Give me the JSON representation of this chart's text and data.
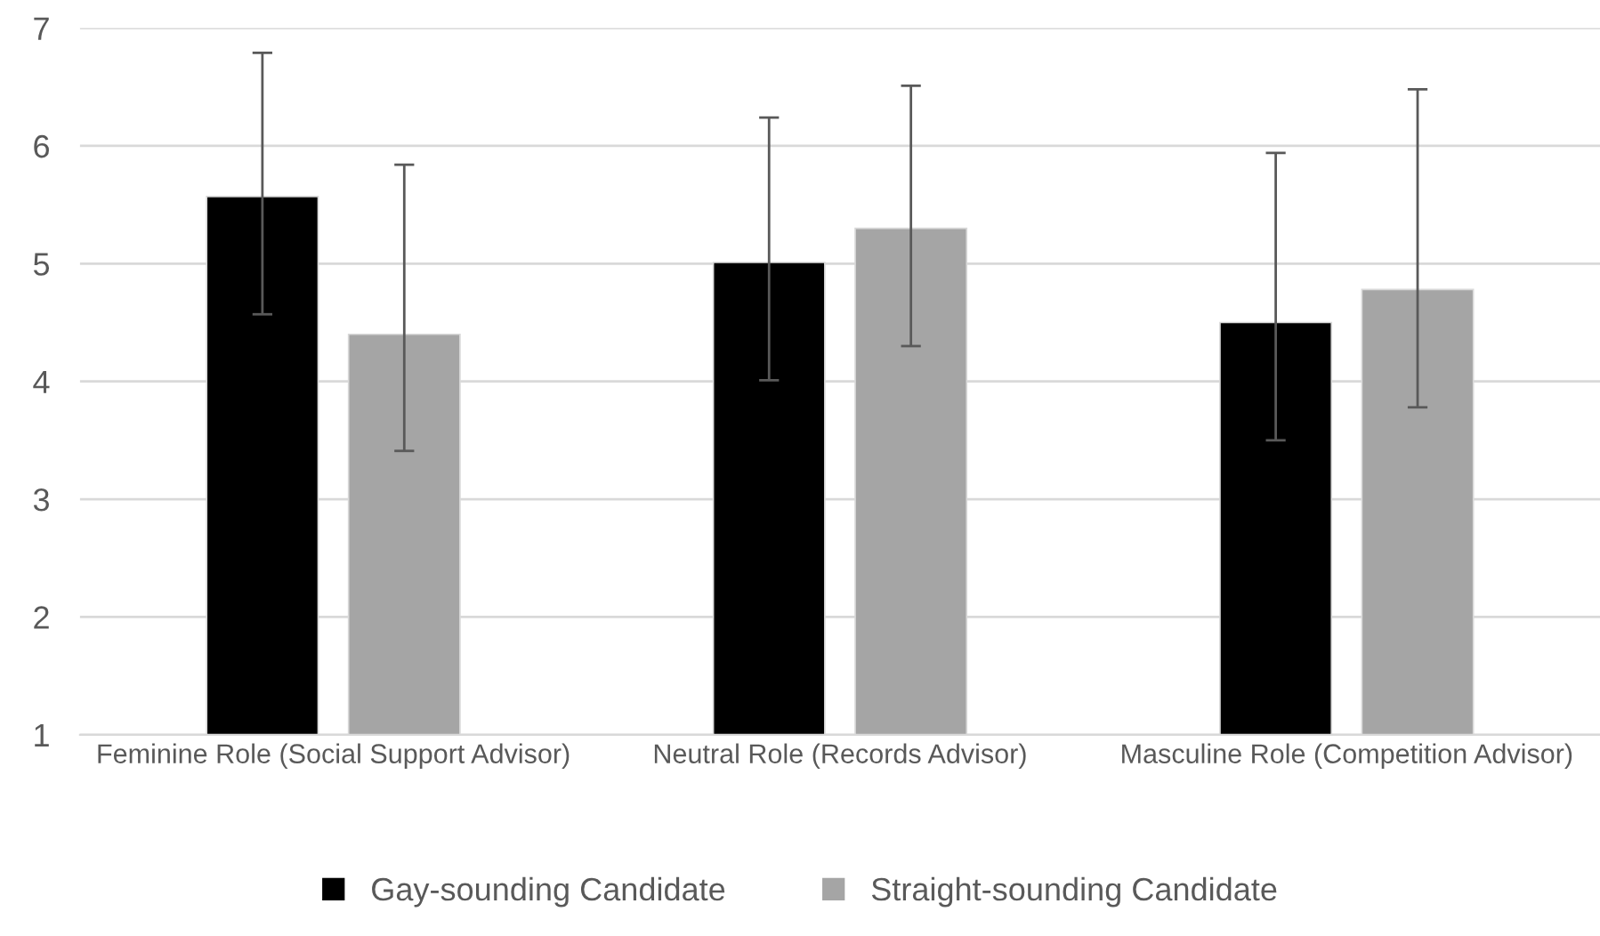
{
  "chart_data": {
    "type": "bar",
    "categories": [
      "Feminine Role (Social Support Advisor)",
      "Neutral Role (Records Advisor)",
      "Masculine Role (Competition Advisor)"
    ],
    "series": [
      {
        "name": "Gay-sounding Candidate",
        "color": "#000000",
        "values": [
          5.57,
          5.01,
          4.5
        ],
        "errors": [
          [
            4.57,
            6.79
          ],
          [
            4.01,
            6.24
          ],
          [
            3.5,
            5.94
          ]
        ]
      },
      {
        "name": "Straight-sounding Candidate",
        "color": "#a5a5a5",
        "values": [
          4.4,
          5.3,
          4.78
        ],
        "errors": [
          [
            3.41,
            5.84
          ],
          [
            4.3,
            6.51
          ],
          [
            3.78,
            6.48
          ]
        ]
      }
    ],
    "ylim": [
      1,
      7
    ],
    "yticks": [
      1,
      2,
      3,
      4,
      5,
      6,
      7
    ],
    "grid": "y",
    "legend": "bottom"
  }
}
